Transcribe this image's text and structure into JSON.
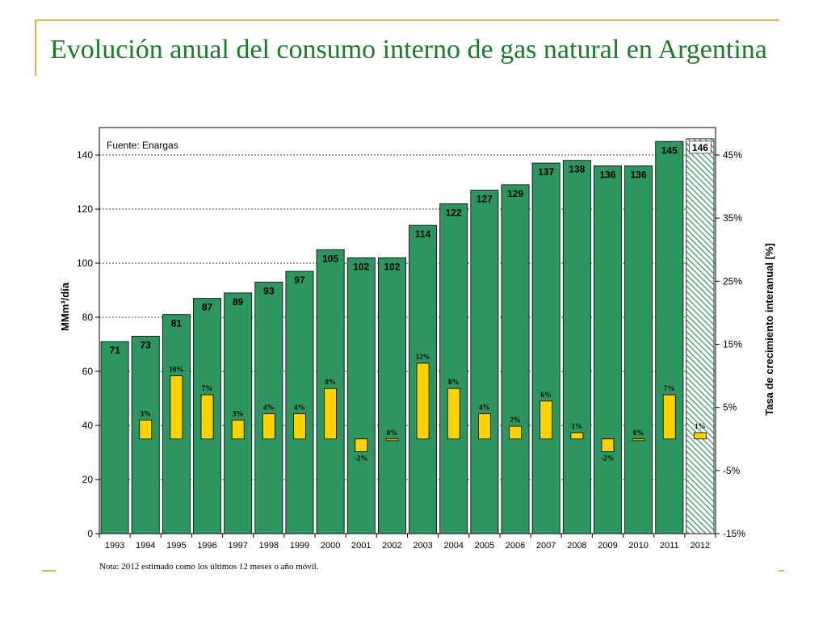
{
  "slide": {
    "title": "Evolución anual del consumo interno de gas natural en Argentina",
    "note": "Nota: 2012 estimado como los últimos 12 meses o año móvil."
  },
  "colors": {
    "accent_line": "#d9b25c",
    "title": "#1d7a2c",
    "bar_volume": "#2e9460",
    "bar_growth": "#ffd200"
  },
  "chart_data": {
    "type": "bar",
    "source_label": "Fuente: Enargas",
    "categories": [
      "1993",
      "1994",
      "1995",
      "1996",
      "1997",
      "1998",
      "1999",
      "2000",
      "2001",
      "2002",
      "2003",
      "2004",
      "2005",
      "2006",
      "2007",
      "2008",
      "2009",
      "2010",
      "2011",
      "2012"
    ],
    "series": [
      {
        "axis": "left",
        "values": [
          71,
          73,
          81,
          87,
          89,
          93,
          97,
          105,
          102,
          102,
          114,
          122,
          127,
          129,
          137,
          138,
          136,
          136,
          145,
          146
        ],
        "labels": [
          "71",
          "73",
          "81",
          "87",
          "89",
          "93",
          "97",
          "105",
          "102",
          "102",
          "114",
          "122",
          "127",
          "129",
          "137",
          "138",
          "136",
          "136",
          "145",
          "146"
        ],
        "hatched_last": true
      },
      {
        "axis": "right",
        "values": [
          null,
          3,
          10,
          7,
          3,
          4,
          4,
          8,
          -2,
          0,
          12,
          8,
          4,
          2,
          6,
          1,
          -2,
          0,
          7,
          1
        ],
        "labels": [
          "",
          "3%",
          "10%",
          "7%",
          "3%",
          "4%",
          "4%",
          "8%",
          "-2%",
          "0%",
          "12%",
          "8%",
          "4%",
          "2%",
          "6%",
          "1%",
          "-2%",
          "0%",
          "7%",
          "1%"
        ]
      }
    ],
    "ylabel": "MMm³/día",
    "ylim": [
      0,
      140
    ],
    "yticks": [
      0,
      20,
      40,
      60,
      80,
      100,
      120,
      140
    ],
    "y2label": "Tasa de crecimiento interanual [%]",
    "y2lim": [
      -15,
      45
    ],
    "y2ticks": [
      -15,
      -5,
      5,
      15,
      25,
      35,
      45
    ],
    "y2ticklabels": [
      "-15%",
      "-5%",
      "5%",
      "15%",
      "25%",
      "35%",
      "45%"
    ],
    "grid": "dashed horizontal at left-axis ticks"
  }
}
